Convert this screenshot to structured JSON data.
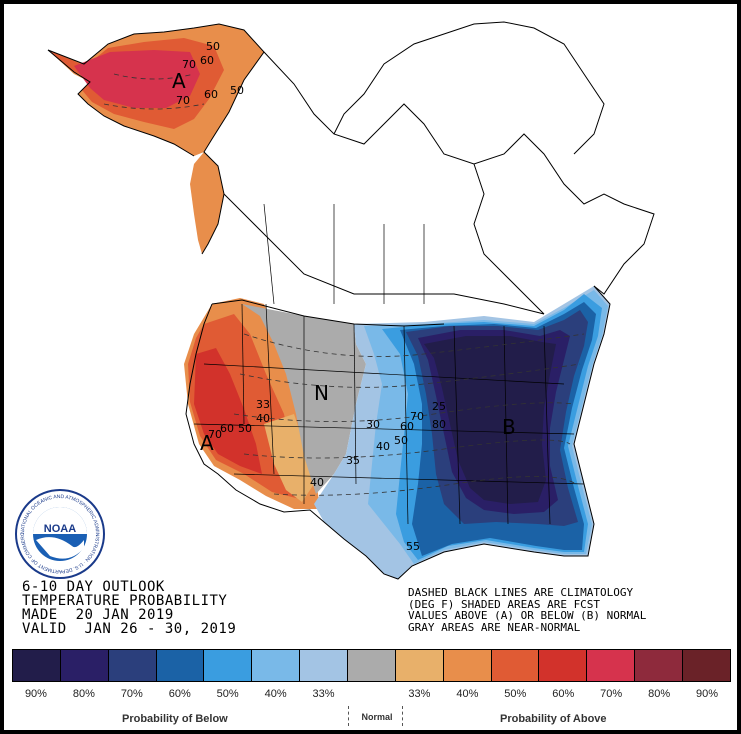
{
  "title_lines": [
    "6-10 DAY OUTLOOK",
    "TEMPERATURE PROBABILITY",
    "MADE  20 JAN 2019",
    "VALID  JAN 26 - 30, 2019"
  ],
  "note_lines": [
    "DASHED BLACK LINES ARE CLIMATOLOGY",
    "(DEG F) SHADED AREAS ARE FCST",
    "VALUES ABOVE (A) OR BELOW (B) NORMAL",
    "GRAY AREAS ARE NEAR-NORMAL"
  ],
  "legend": {
    "swatches": [
      {
        "color": "#221d4a",
        "label": "90%"
      },
      {
        "color": "#2a1f66",
        "label": "80%"
      },
      {
        "color": "#2b3f7c",
        "label": "70%"
      },
      {
        "color": "#1b62a6",
        "label": "60%"
      },
      {
        "color": "#3a9de0",
        "label": "50%"
      },
      {
        "color": "#79b9e8",
        "label": "40%"
      },
      {
        "color": "#a3c4e4",
        "label": "33%"
      },
      {
        "color": "#ababab",
        "label": ""
      },
      {
        "color": "#e8b06a",
        "label": "33%"
      },
      {
        "color": "#e88e4b",
        "label": "40%"
      },
      {
        "color": "#e05b34",
        "label": "50%"
      },
      {
        "color": "#d2322b",
        "label": "60%"
      },
      {
        "color": "#d6334d",
        "label": "70%"
      },
      {
        "color": "#8e2a3c",
        "label": "80%"
      },
      {
        "color": "#6a2228",
        "label": "90%"
      }
    ],
    "below_caption": "Probability of Below",
    "normal_caption": "Normal",
    "above_caption": "Probability of Above"
  },
  "map_labels": {
    "alaska_category": "A",
    "west_category": "A",
    "central_category": "N",
    "east_category": "B"
  },
  "contour_labels": [
    {
      "text": "50",
      "region": "alaska"
    },
    {
      "text": "60",
      "region": "alaska"
    },
    {
      "text": "70",
      "region": "alaska"
    },
    {
      "text": "60",
      "region": "alaska"
    },
    {
      "text": "50",
      "region": "alaska"
    },
    {
      "text": "70",
      "region": "alaska"
    },
    {
      "text": "33",
      "region": "west"
    },
    {
      "text": "40",
      "region": "west"
    },
    {
      "text": "50",
      "region": "west"
    },
    {
      "text": "60",
      "region": "west"
    },
    {
      "text": "70",
      "region": "west"
    },
    {
      "text": "40",
      "region": "west"
    },
    {
      "text": "30",
      "region": "central"
    },
    {
      "text": "35",
      "region": "central"
    },
    {
      "text": "40",
      "region": "central"
    },
    {
      "text": "50",
      "region": "east"
    },
    {
      "text": "60",
      "region": "east"
    },
    {
      "text": "70",
      "region": "east"
    },
    {
      "text": "80",
      "region": "east"
    },
    {
      "text": "55",
      "region": "east"
    },
    {
      "text": "25",
      "region": "east"
    }
  ],
  "logo": {
    "text": "NOAA",
    "ring_text": "NATIONAL OCEANIC AND ATMOSPHERIC ADMINISTRATION · U.S. DEPARTMENT OF COMMERCE"
  },
  "colors": {
    "border": "#000000",
    "background": "#ffffff",
    "coast": "#000000"
  }
}
